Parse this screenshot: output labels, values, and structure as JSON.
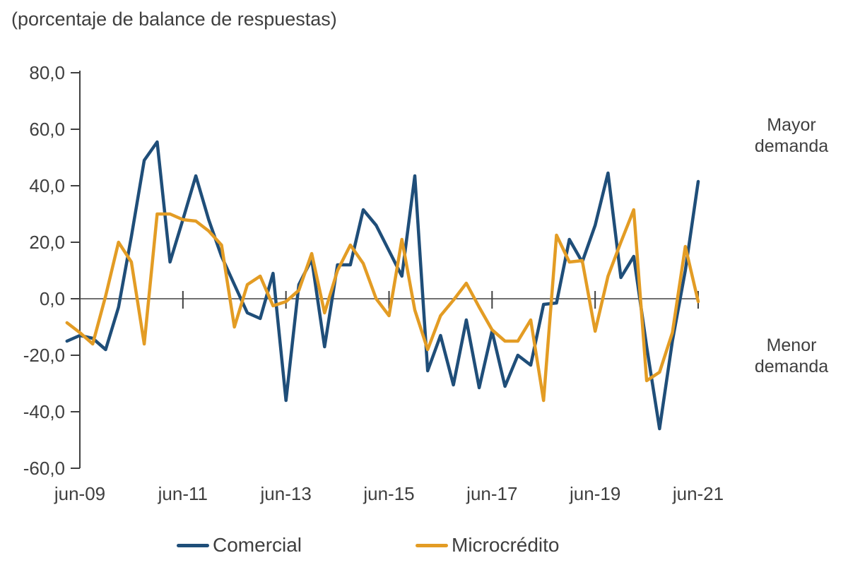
{
  "title": "(porcentaje de balance de respuestas)",
  "annotations": {
    "upper_right": "Mayor\ndemanda",
    "lower_right": "Menor\ndemanda"
  },
  "legend": {
    "items": [
      {
        "label": "Comercial",
        "color": "#1F4E79"
      },
      {
        "label": "Microcrédito",
        "color": "#E39C24"
      }
    ]
  },
  "colors": {
    "comercial": "#1F4E79",
    "microcredito": "#E39C24",
    "axis": "#404040",
    "text": "#3F3F3F"
  },
  "y_axis": {
    "tick_labels": [
      "80,0",
      "60,0",
      "40,0",
      "20,0",
      "0,0",
      "-20,0",
      "-40,0",
      "-60,0"
    ],
    "tick_values": [
      80,
      60,
      40,
      20,
      0,
      -20,
      -40,
      -60
    ],
    "min": -60,
    "max": 80
  },
  "x_axis": {
    "tick_labels": [
      "jun-09",
      "jun-11",
      "jun-13",
      "jun-15",
      "jun-17",
      "jun-19",
      "jun-21"
    ]
  },
  "chart_data": {
    "type": "line",
    "title": "(porcentaje de balance de respuestas)",
    "xlabel": "",
    "ylabel": "",
    "ylim": [
      -60,
      80
    ],
    "grid": false,
    "legend_position": "bottom",
    "x": [
      "mar-09",
      "jun-09",
      "sep-09",
      "dec-09",
      "mar-10",
      "jun-10",
      "sep-10",
      "dec-10",
      "mar-11",
      "jun-11",
      "sep-11",
      "dec-11",
      "mar-12",
      "jun-12",
      "sep-12",
      "dec-12",
      "mar-13",
      "jun-13",
      "sep-13",
      "dec-13",
      "mar-14",
      "jun-14",
      "sep-14",
      "dec-14",
      "mar-15",
      "jun-15",
      "sep-15",
      "dec-15",
      "mar-16",
      "jun-16",
      "sep-16",
      "dec-16",
      "mar-17",
      "jun-17",
      "sep-17",
      "dec-17",
      "mar-18",
      "jun-18",
      "sep-18",
      "dec-18",
      "mar-19",
      "jun-19",
      "sep-19",
      "dec-19",
      "mar-20",
      "jun-20",
      "sep-20",
      "dec-20",
      "mar-21",
      "jun-21"
    ],
    "series": [
      {
        "name": "Comercial",
        "color": "#1F4E79",
        "values": [
          -15,
          -13,
          -14,
          -18,
          -3,
          22,
          49,
          55.5,
          13,
          28,
          43.5,
          28,
          15,
          5,
          -5,
          -7,
          9,
          -36,
          5,
          14,
          -17,
          12,
          12,
          31.5,
          26,
          17,
          8,
          43.5,
          -25.5,
          -13,
          -30.5,
          -7.5,
          -31.5,
          -11.5,
          -31,
          -20,
          -23.5,
          -2,
          -1.5,
          21,
          13,
          26,
          44.5,
          7.5,
          15,
          -17,
          -46,
          -15,
          10,
          41.5
        ]
      },
      {
        "name": "Microcrédito",
        "color": "#E39C24",
        "values": [
          -8.5,
          -12,
          -16,
          1,
          20,
          13,
          -16,
          30,
          30,
          28,
          27.5,
          24,
          19,
          -10,
          5,
          8,
          -2.5,
          -1,
          3,
          16,
          -5,
          10,
          19,
          12.5,
          0,
          -6,
          21,
          -4,
          -18,
          -6,
          -0.5,
          5.5,
          -3,
          -11,
          -15,
          -15,
          -7.5,
          -36,
          22.5,
          13,
          13.5,
          -11.5,
          8,
          20,
          31.5,
          -29,
          -26,
          -12,
          18.5,
          -1
        ]
      }
    ]
  }
}
